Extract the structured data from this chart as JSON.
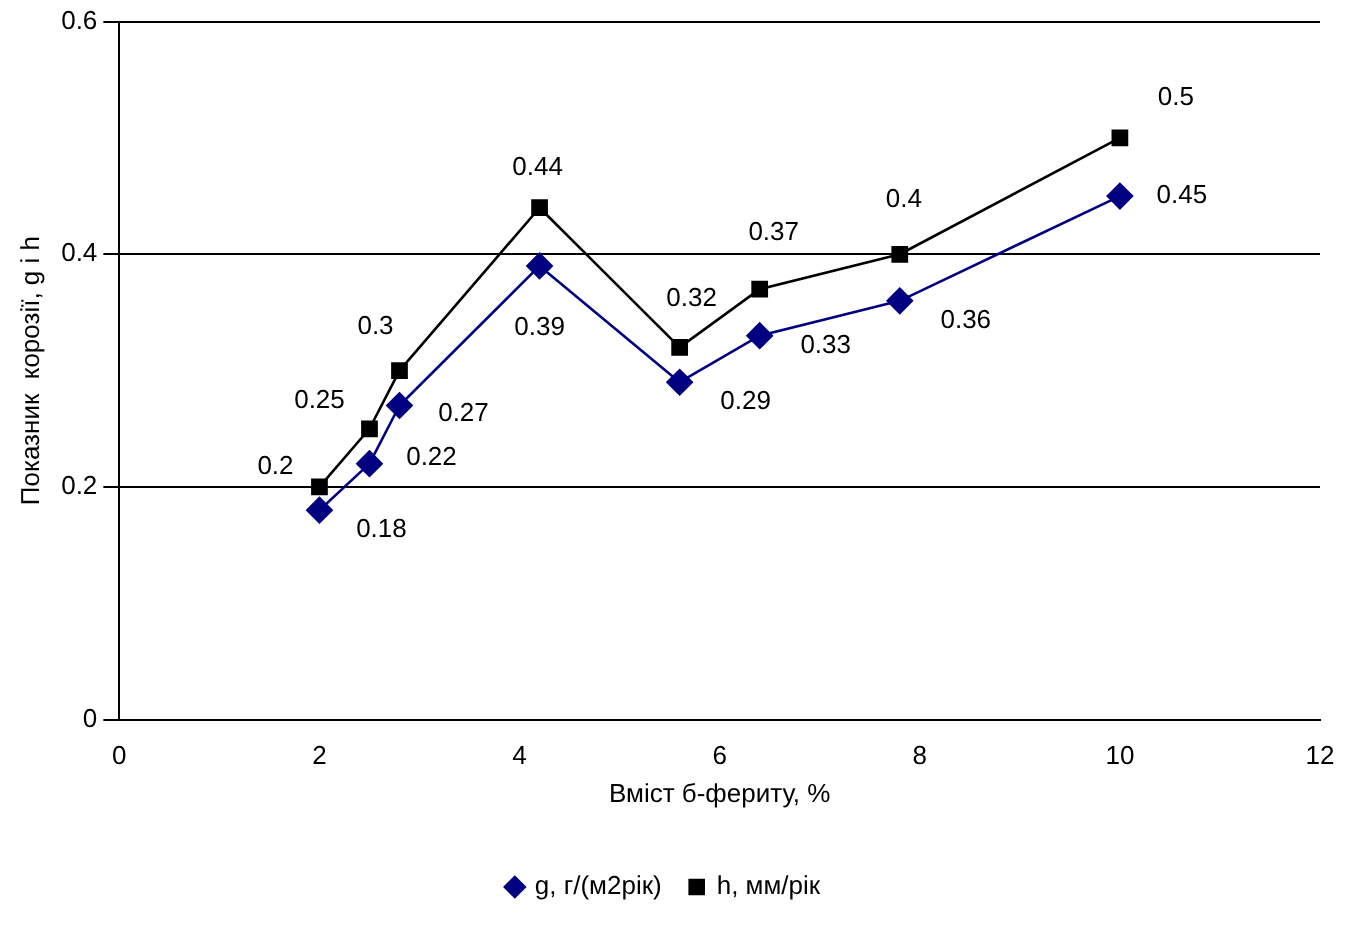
{
  "chart_data": {
    "type": "line",
    "xlabel": "Вміст б-фериту, %",
    "ylabel": "Показник  корозії, g і h",
    "x": [
      2,
      2.5,
      2.8,
      4.2,
      5.6,
      6.4,
      7.8,
      10
    ],
    "series": [
      {
        "name": "g, г/(м2рік)",
        "color": "#000080",
        "marker": "diamond",
        "values": [
          0.18,
          0.22,
          0.27,
          0.39,
          0.29,
          0.33,
          0.36,
          0.45
        ]
      },
      {
        "name": "h, мм/рік",
        "color": "#000000",
        "marker": "square",
        "values": [
          0.2,
          0.25,
          0.3,
          0.44,
          0.32,
          0.37,
          0.4,
          0.5
        ]
      }
    ],
    "xlim": [
      0,
      12
    ],
    "xticks": [
      0,
      2,
      4,
      6,
      8,
      10,
      12
    ],
    "ylim": [
      0,
      0.6
    ],
    "yticks": [
      0,
      0.2,
      0.4,
      0.6
    ],
    "grid": "y",
    "legend": "bottom",
    "data_labels": true,
    "line_style": "solid"
  }
}
